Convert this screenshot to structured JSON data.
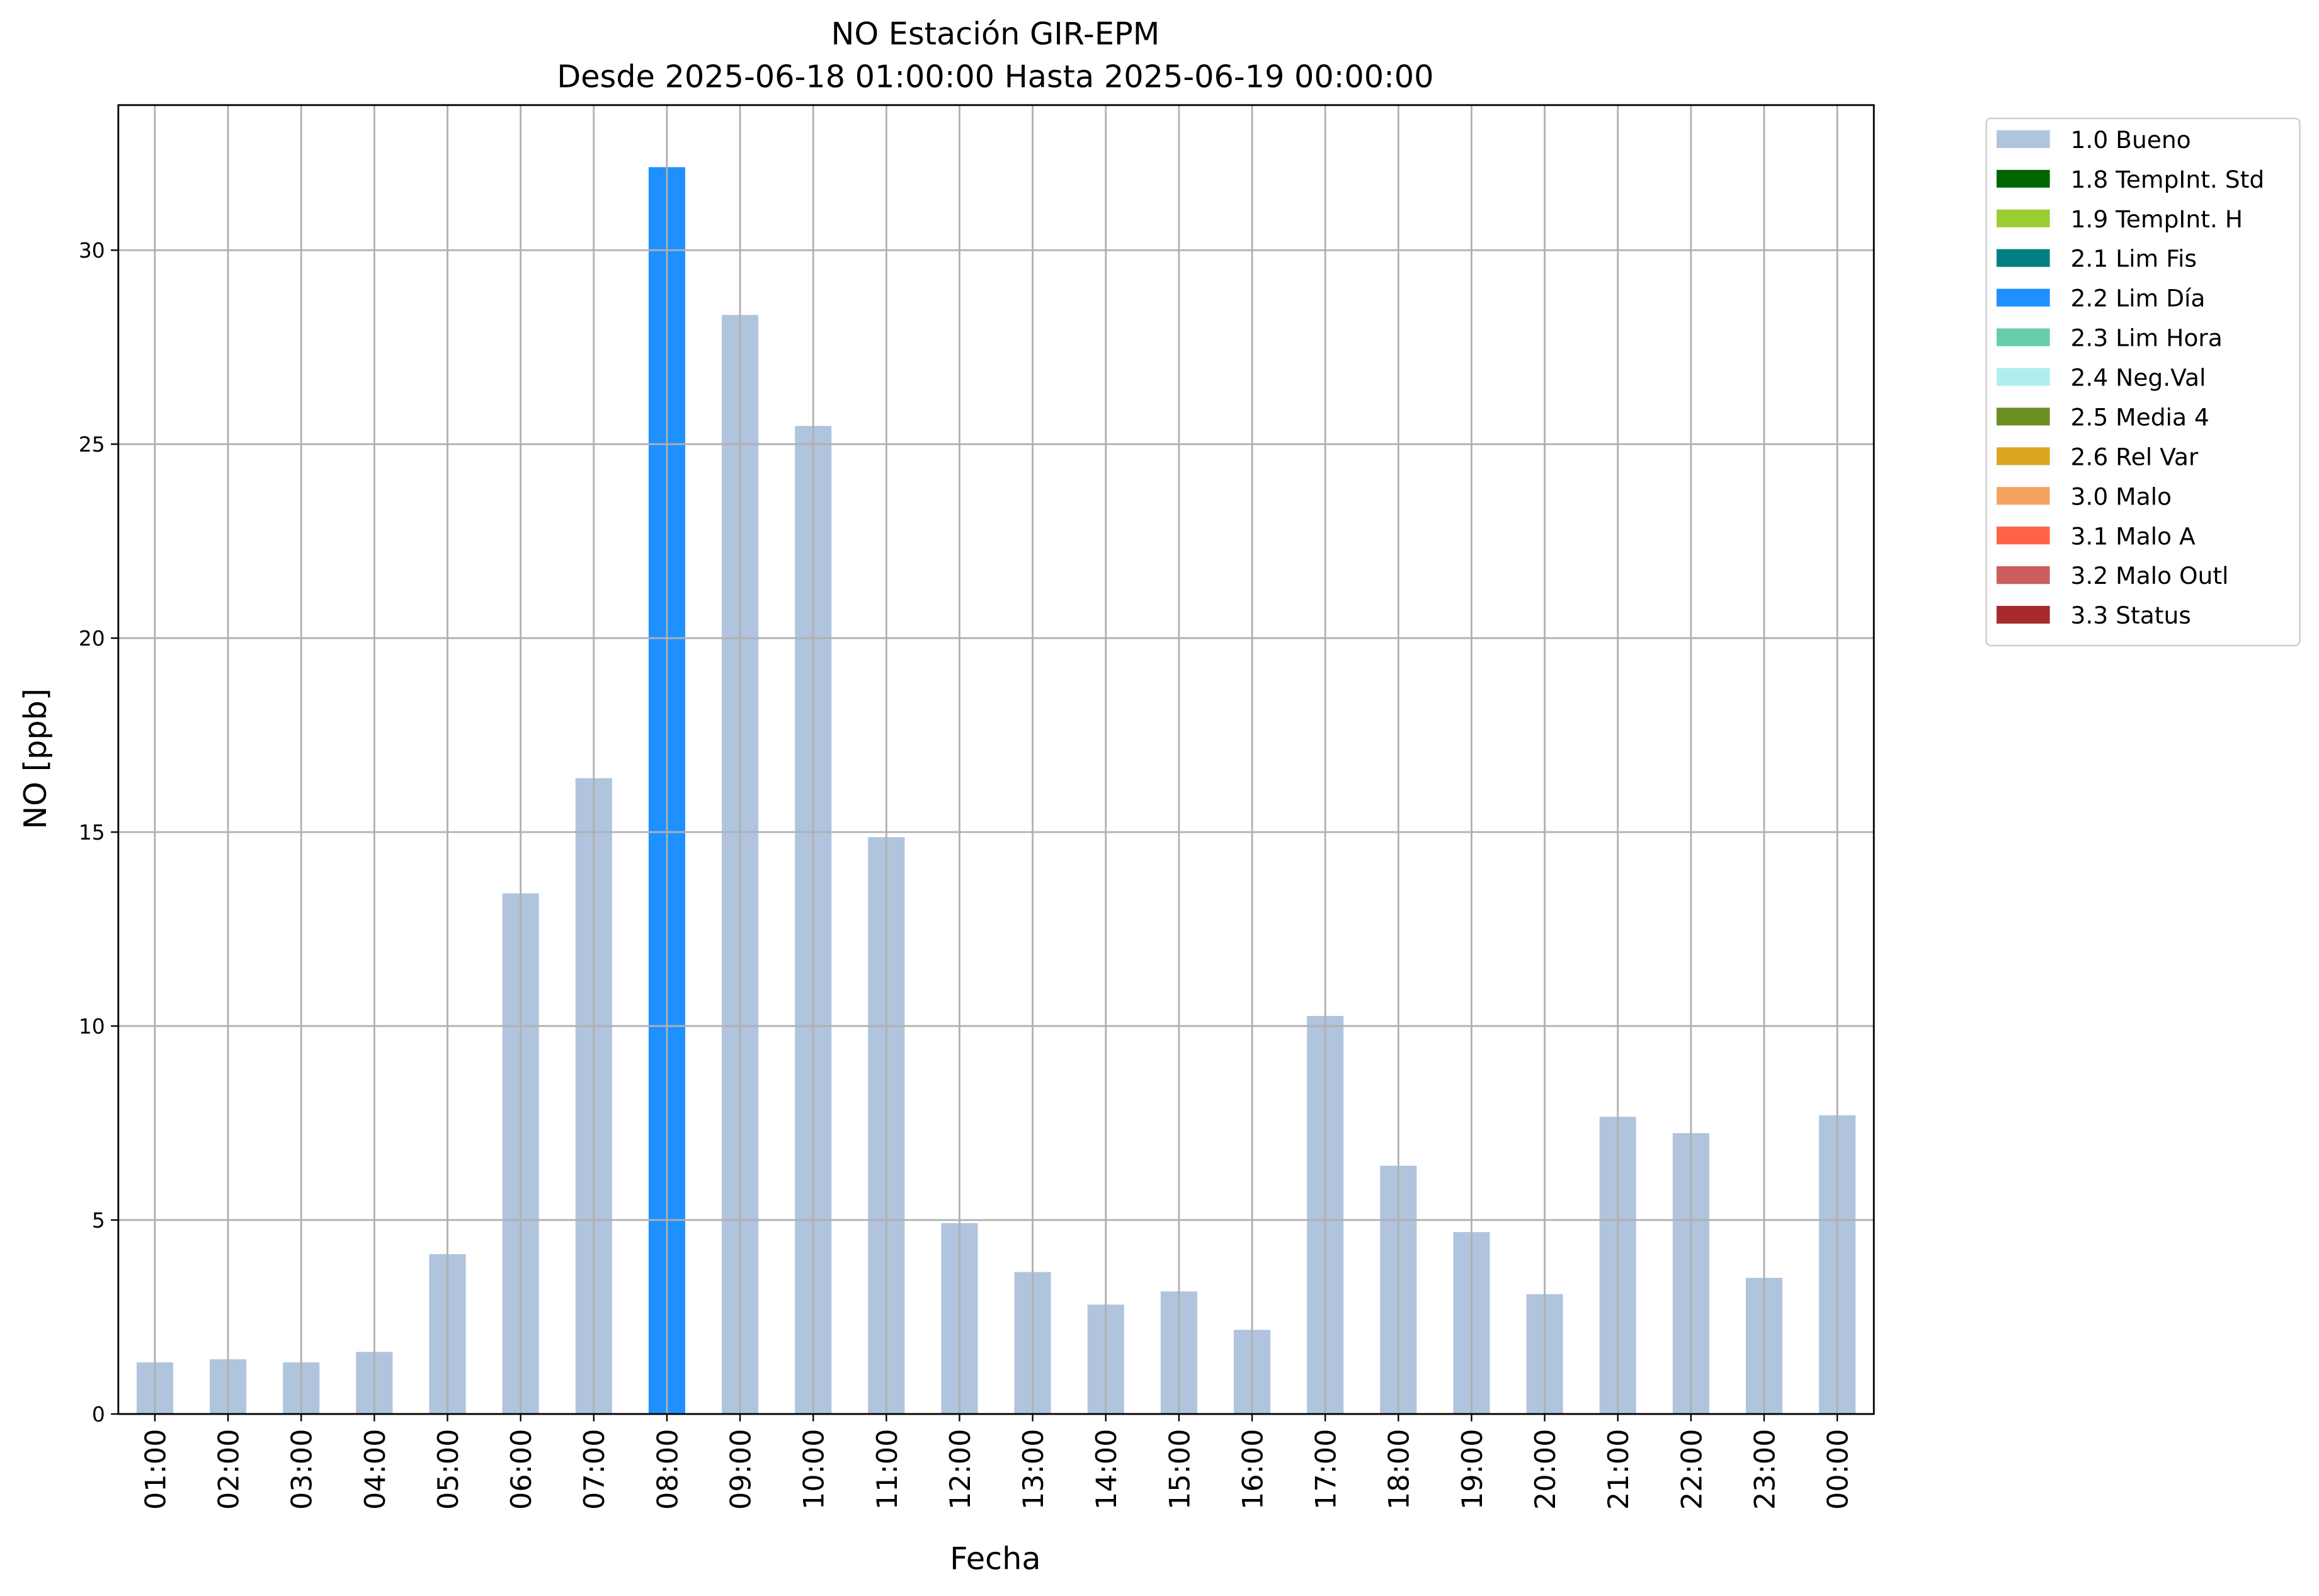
{
  "chart_data": {
    "type": "bar",
    "title": "NO Estación GIR-EPM",
    "subtitle": "Desde 2025-06-18 01:00:00 Hasta 2025-06-19 00:00:00",
    "x_label": "Fecha",
    "y_label": "NO [ppb]",
    "categories": [
      "01:00",
      "02:00",
      "03:00",
      "04:00",
      "05:00",
      "06:00",
      "07:00",
      "08:00",
      "09:00",
      "10:00",
      "11:00",
      "12:00",
      "13:00",
      "14:00",
      "15:00",
      "16:00",
      "17:00",
      "18:00",
      "19:00",
      "20:00",
      "21:00",
      "22:00",
      "23:00",
      "00:00"
    ],
    "series": [
      {
        "name": "1.0 Bueno",
        "color": "#b0c4de",
        "values": [
          1.33,
          1.41,
          1.33,
          1.6,
          4.12,
          13.42,
          16.39,
          null,
          28.33,
          25.47,
          14.87,
          4.92,
          3.66,
          2.82,
          3.16,
          2.17,
          10.26,
          6.4,
          4.69,
          3.09,
          7.66,
          7.24,
          3.51,
          7.7
        ]
      },
      {
        "name": "1.8 TempInt. Std",
        "color": "#006400",
        "values": [
          null,
          null,
          null,
          null,
          null,
          null,
          null,
          null,
          null,
          null,
          null,
          null,
          null,
          null,
          null,
          null,
          null,
          null,
          null,
          null,
          null,
          null,
          null,
          null
        ]
      },
      {
        "name": "1.9 TempInt. H",
        "color": "#9acd32",
        "values": [
          null,
          null,
          null,
          null,
          null,
          null,
          null,
          null,
          null,
          null,
          null,
          null,
          null,
          null,
          null,
          null,
          null,
          null,
          null,
          null,
          null,
          null,
          null,
          null
        ]
      },
      {
        "name": "2.1 Lim Fis",
        "color": "#008080",
        "values": [
          null,
          null,
          null,
          null,
          null,
          null,
          null,
          null,
          null,
          null,
          null,
          null,
          null,
          null,
          null,
          null,
          null,
          null,
          null,
          null,
          null,
          null,
          null,
          null
        ]
      },
      {
        "name": "2.2 Lim Día",
        "color": "#1e90ff",
        "values": [
          null,
          null,
          null,
          null,
          null,
          null,
          null,
          32.14,
          null,
          null,
          null,
          null,
          null,
          null,
          null,
          null,
          null,
          null,
          null,
          null,
          null,
          null,
          null,
          null
        ]
      },
      {
        "name": "2.3 Lim Hora",
        "color": "#66cdaa",
        "values": [
          null,
          null,
          null,
          null,
          null,
          null,
          null,
          null,
          null,
          null,
          null,
          null,
          null,
          null,
          null,
          null,
          null,
          null,
          null,
          null,
          null,
          null,
          null,
          null
        ]
      },
      {
        "name": "2.4 Neg.Val",
        "color": "#afeeee",
        "values": [
          null,
          null,
          null,
          null,
          null,
          null,
          null,
          null,
          null,
          null,
          null,
          null,
          null,
          null,
          null,
          null,
          null,
          null,
          null,
          null,
          null,
          null,
          null,
          null
        ]
      },
      {
        "name": "2.5 Media 4",
        "color": "#6b8e23",
        "values": [
          null,
          null,
          null,
          null,
          null,
          null,
          null,
          null,
          null,
          null,
          null,
          null,
          null,
          null,
          null,
          null,
          null,
          null,
          null,
          null,
          null,
          null,
          null,
          null
        ]
      },
      {
        "name": "2.6 Rel Var",
        "color": "#daa520",
        "values": [
          null,
          null,
          null,
          null,
          null,
          null,
          null,
          null,
          null,
          null,
          null,
          null,
          null,
          null,
          null,
          null,
          null,
          null,
          null,
          null,
          null,
          null,
          null,
          null
        ]
      },
      {
        "name": "3.0 Malo",
        "color": "#f4a460",
        "values": [
          null,
          null,
          null,
          null,
          null,
          null,
          null,
          null,
          null,
          null,
          null,
          null,
          null,
          null,
          null,
          null,
          null,
          null,
          null,
          null,
          null,
          null,
          null,
          null
        ]
      },
      {
        "name": "3.1 Malo A",
        "color": "#ff6347",
        "values": [
          null,
          null,
          null,
          null,
          null,
          null,
          null,
          null,
          null,
          null,
          null,
          null,
          null,
          null,
          null,
          null,
          null,
          null,
          null,
          null,
          null,
          null,
          null,
          null
        ]
      },
      {
        "name": "3.2 Malo Outl",
        "color": "#cd5c5c",
        "values": [
          null,
          null,
          null,
          null,
          null,
          null,
          null,
          null,
          null,
          null,
          null,
          null,
          null,
          null,
          null,
          null,
          null,
          null,
          null,
          null,
          null,
          null,
          null,
          null
        ]
      },
      {
        "name": "3.3 Status",
        "color": "#a52a2a",
        "values": [
          null,
          null,
          null,
          null,
          null,
          null,
          null,
          null,
          null,
          null,
          null,
          null,
          null,
          null,
          null,
          null,
          null,
          null,
          null,
          null,
          null,
          null,
          null,
          null
        ]
      }
    ],
    "ylim": [
      0,
      33.74
    ],
    "yticks": [
      0,
      5,
      10,
      15,
      20,
      25,
      30
    ],
    "grid": true,
    "legend": "outside-right"
  }
}
